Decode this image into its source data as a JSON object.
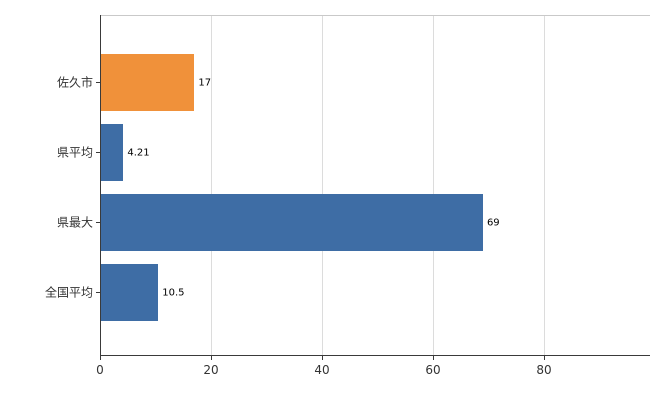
{
  "chart_data": {
    "type": "bar",
    "orientation": "horizontal",
    "title": "",
    "xlabel": "",
    "ylabel": "",
    "categories": [
      "佐久市",
      "県平均",
      "県最大",
      "全国平均"
    ],
    "values": [
      17,
      4.21,
      69,
      10.5
    ],
    "value_labels": [
      "17",
      "4.21",
      "69",
      "10.5"
    ],
    "bar_colors": [
      "#F0913A",
      "#3E6DA5",
      "#3E6DA5",
      "#3E6DA5"
    ],
    "x_ticks": [
      0,
      20,
      40,
      60,
      80
    ],
    "x_tick_labels": [
      "0",
      "20",
      "40",
      "60",
      "80"
    ],
    "xlim": [
      0,
      100
    ],
    "grid": true,
    "legend": false,
    "colors": {
      "highlight_bar": "#F0913A",
      "default_bar": "#3E6DA5",
      "axis": "#3a3a3a",
      "gridline": "#dcdcdc",
      "background": "#ffffff"
    }
  }
}
